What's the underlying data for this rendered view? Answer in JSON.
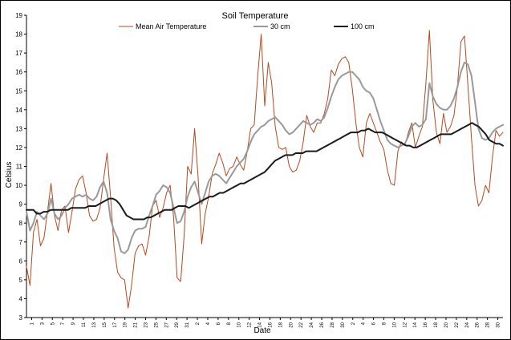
{
  "chart_data": {
    "type": "line",
    "title": "Soil Temperature",
    "xlabel": "Date",
    "ylabel": "Celsius",
    "ylim": [
      3,
      19
    ],
    "yticks": [
      3,
      4,
      5,
      6,
      7,
      8,
      9,
      10,
      11,
      12,
      13,
      14,
      15,
      16,
      17,
      18,
      19
    ],
    "grid": false,
    "legend_position": "top",
    "x_tick_labels": [
      "1",
      "3",
      "5",
      "7",
      "9",
      "11",
      "13",
      "15",
      "17",
      "19",
      "21",
      "23",
      "25",
      "27",
      "29",
      "31",
      "2",
      "4",
      "6",
      "8",
      "10",
      "12",
      "14",
      "16",
      "18",
      "20",
      "22",
      "24",
      "26",
      "28",
      "30",
      "2",
      "4",
      "6",
      "8",
      "10",
      "12",
      "14",
      "16",
      "18",
      "20",
      "22",
      "24",
      "26",
      "28",
      "30"
    ],
    "series": [
      {
        "name": "Mean Air Temperature",
        "color": "#b5491f",
        "width": 1,
        "values": [
          5.7,
          4.7,
          7.5,
          8.2,
          6.8,
          7.2,
          8.6,
          10.1,
          8.4,
          7.6,
          8.7,
          8.9,
          7.5,
          8.6,
          9.8,
          10.3,
          10.5,
          9.6,
          8.4,
          8.1,
          8.2,
          8.8,
          10.3,
          11.7,
          9.4,
          6.7,
          5.4,
          5.1,
          5.0,
          3.5,
          4.7,
          6.4,
          6.8,
          6.9,
          6.3,
          7.3,
          8.9,
          9.2,
          8.3,
          8.8,
          9.6,
          10.0,
          8.3,
          5.1,
          4.9,
          7.3,
          11.0,
          10.6,
          13.0,
          10.4,
          6.9,
          8.5,
          9.4,
          10.6,
          11.1,
          11.7,
          11.2,
          10.5,
          10.9,
          11.0,
          11.5,
          11.1,
          10.8,
          11.8,
          13.0,
          13.2,
          15.8,
          18.0,
          14.2,
          16.5,
          15.4,
          13.1,
          12.0,
          11.9,
          12.0,
          11.0,
          10.7,
          10.8,
          11.3,
          12.3,
          13.7,
          13.1,
          12.8,
          13.3,
          13.3,
          13.8,
          14.6,
          16.1,
          15.8,
          16.4,
          16.7,
          16.8,
          16.5,
          15.1,
          13.3,
          12.0,
          11.5,
          13.3,
          13.8,
          13.3,
          12.8,
          12.3,
          11.9,
          10.8,
          10.1,
          10.0,
          11.8,
          12.3,
          12.1,
          12.8,
          13.3,
          12.0,
          12.6,
          13.1,
          15.4,
          18.2,
          14.5,
          12.8,
          12.2,
          13.8,
          12.8,
          13.1,
          13.7,
          15.2,
          17.6,
          17.9,
          15.3,
          12.5,
          10.0,
          8.9,
          9.2,
          10.0,
          9.6,
          11.5,
          12.9,
          12.6,
          12.8
        ]
      },
      {
        "name": "30 cm",
        "color": "#999999",
        "width": 2,
        "values": [
          8.6,
          7.6,
          8.0,
          8.6,
          8.4,
          8.2,
          8.5,
          9.3,
          8.5,
          8.2,
          8.4,
          8.8,
          9.0,
          9.3,
          9.4,
          9.5,
          9.4,
          9.5,
          9.3,
          9.2,
          9.4,
          9.9,
          10.2,
          9.6,
          8.2,
          7.6,
          7.2,
          6.5,
          6.4,
          6.6,
          7.2,
          7.6,
          7.7,
          7.7,
          7.8,
          8.4,
          8.9,
          9.5,
          9.7,
          10.0,
          9.9,
          9.6,
          8.8,
          8.0,
          8.1,
          8.6,
          9.4,
          9.9,
          10.2,
          9.6,
          9.0,
          9.6,
          10.2,
          10.5,
          10.6,
          10.5,
          10.3,
          10.1,
          10.4,
          10.7,
          11.0,
          11.2,
          11.4,
          11.8,
          12.3,
          12.7,
          12.9,
          13.1,
          13.2,
          13.4,
          13.5,
          13.6,
          13.4,
          13.2,
          12.9,
          12.7,
          12.8,
          13.0,
          13.2,
          13.4,
          13.3,
          13.2,
          13.3,
          13.5,
          13.4,
          13.6,
          14.1,
          14.7,
          15.2,
          15.6,
          15.8,
          15.9,
          16.0,
          16.0,
          15.8,
          15.6,
          15.2,
          15.0,
          14.9,
          14.6,
          14.0,
          13.4,
          12.9,
          12.4,
          12.2,
          12.1,
          12.0,
          12.1,
          12.2,
          12.6,
          13.1,
          13.3,
          13.1,
          13.2,
          13.5,
          15.4,
          14.7,
          14.3,
          14.1,
          14.0,
          14.0,
          14.2,
          14.6,
          15.2,
          16.0,
          16.5,
          16.4,
          15.8,
          14.4,
          13.0,
          12.5,
          12.4,
          12.5,
          12.8,
          13.0,
          13.1,
          13.2
        ]
      },
      {
        "name": "100 cm",
        "color": "#1a1a1a",
        "width": 2,
        "values": [
          8.7,
          8.7,
          8.7,
          8.5,
          8.5,
          8.6,
          8.6,
          8.7,
          8.7,
          8.7,
          8.7,
          8.7,
          8.7,
          8.8,
          8.8,
          8.8,
          8.8,
          8.8,
          8.9,
          8.9,
          8.9,
          9.0,
          9.1,
          9.2,
          9.3,
          9.3,
          9.2,
          9.0,
          8.7,
          8.4,
          8.3,
          8.2,
          8.2,
          8.2,
          8.2,
          8.3,
          8.3,
          8.4,
          8.5,
          8.6,
          8.7,
          8.7,
          8.7,
          8.8,
          8.9,
          8.9,
          8.9,
          8.8,
          8.9,
          9.0,
          9.1,
          9.2,
          9.3,
          9.4,
          9.4,
          9.5,
          9.6,
          9.6,
          9.7,
          9.8,
          9.9,
          10.0,
          10.1,
          10.1,
          10.2,
          10.3,
          10.4,
          10.5,
          10.6,
          10.7,
          10.9,
          11.1,
          11.3,
          11.4,
          11.5,
          11.6,
          11.6,
          11.6,
          11.7,
          11.7,
          11.7,
          11.8,
          11.8,
          11.8,
          11.8,
          11.9,
          12.0,
          12.1,
          12.2,
          12.3,
          12.4,
          12.5,
          12.6,
          12.7,
          12.8,
          12.8,
          12.8,
          12.9,
          12.9,
          13.0,
          12.9,
          12.8,
          12.8,
          12.8,
          12.7,
          12.6,
          12.5,
          12.4,
          12.3,
          12.2,
          12.1,
          12.1,
          12.0,
          12.0,
          12.1,
          12.2,
          12.3,
          12.4,
          12.5,
          12.6,
          12.7,
          12.7,
          12.7,
          12.7,
          12.8,
          12.9,
          13.0,
          13.1,
          13.2,
          13.3,
          13.2,
          13.1,
          12.9,
          12.7,
          12.4,
          12.3,
          12.2,
          12.2,
          12.1
        ]
      }
    ]
  }
}
